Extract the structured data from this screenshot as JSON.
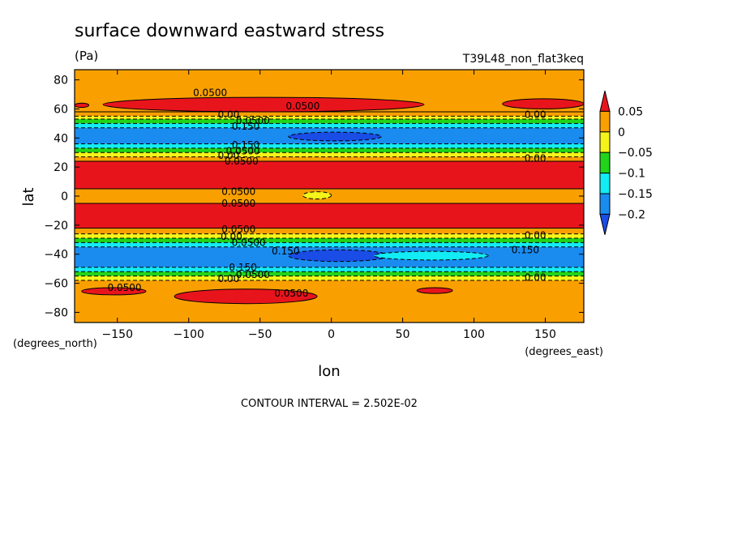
{
  "chart_data": {
    "type": "heatmap",
    "title": "surface downward eastward stress",
    "subtitle": "(Pa)",
    "run_label": "T39L48_non_flat3keq",
    "xlabel": "lon",
    "ylabel": "lat",
    "x_unit_label": "(degrees_east)",
    "y_unit_label": "(degrees_north)",
    "footer": "CONTOUR INTERVAL = 2.502E-02",
    "xlim": [
      -180,
      177
    ],
    "ylim": [
      -87,
      87
    ],
    "x_ticks": [
      -150,
      -100,
      -50,
      0,
      50,
      100,
      150
    ],
    "y_ticks": [
      -80,
      -60,
      -40,
      -20,
      0,
      20,
      40,
      60,
      80
    ],
    "x_tick_labels": [
      "−150",
      "−100",
      "−50",
      "0",
      "50",
      "100",
      "150"
    ],
    "y_tick_labels": [
      "−80",
      "−60",
      "−40",
      "−20",
      "0",
      "20",
      "40",
      "60",
      "80"
    ],
    "colorbar": {
      "levels": [
        0.05,
        0,
        -0.05,
        -0.1,
        -0.15,
        -0.2
      ],
      "level_labels": [
        "0.05",
        "0",
        "−0.05",
        "−0.1",
        "−0.15",
        "−0.2"
      ],
      "colors": [
        "#e8141c",
        "#f9a000",
        "#f4f41a",
        "#22d41a",
        "#12ecf4",
        "#1a8cf0",
        "#1a4ce6"
      ]
    },
    "bands": [
      {
        "lat_from": 87,
        "lat_to": 58,
        "value": 0.03
      },
      {
        "lat_from": 58,
        "lat_to": 55,
        "value": 0.01
      },
      {
        "lat_from": 55,
        "lat_to": 53,
        "value": -0.02
      },
      {
        "lat_from": 53,
        "lat_to": 50,
        "value": -0.07
      },
      {
        "lat_from": 50,
        "lat_to": 47,
        "value": -0.12
      },
      {
        "lat_from": 47,
        "lat_to": 36,
        "value": -0.17
      },
      {
        "lat_from": 36,
        "lat_to": 33,
        "value": -0.12
      },
      {
        "lat_from": 33,
        "lat_to": 30,
        "value": -0.07
      },
      {
        "lat_from": 30,
        "lat_to": 27,
        "value": -0.02
      },
      {
        "lat_from": 27,
        "lat_to": 24,
        "value": 0.03
      },
      {
        "lat_from": 24,
        "lat_to": 5,
        "value": 0.06
      },
      {
        "lat_from": 5,
        "lat_to": -5,
        "value": 0.03
      },
      {
        "lat_from": -5,
        "lat_to": -22,
        "value": 0.06
      },
      {
        "lat_from": -22,
        "lat_to": -26,
        "value": 0.03
      },
      {
        "lat_from": -26,
        "lat_to": -29,
        "value": -0.02
      },
      {
        "lat_from": -29,
        "lat_to": -32,
        "value": -0.07
      },
      {
        "lat_from": -32,
        "lat_to": -35,
        "value": -0.12
      },
      {
        "lat_from": -35,
        "lat_to": -49,
        "value": -0.17
      },
      {
        "lat_from": -49,
        "lat_to": -52,
        "value": -0.12
      },
      {
        "lat_from": -52,
        "lat_to": -55,
        "value": -0.07
      },
      {
        "lat_from": -55,
        "lat_to": -58,
        "value": -0.02
      },
      {
        "lat_from": -58,
        "lat_to": -87,
        "value": 0.03
      }
    ],
    "patches": [
      {
        "lon_from": -160,
        "lon_to": 65,
        "lat_from": 68,
        "lat_to": 58,
        "value": 0.06
      },
      {
        "lon_from": 120,
        "lon_to": 177,
        "lat_from": 67,
        "lat_to": 60,
        "value": 0.06
      },
      {
        "lon_from": -180,
        "lon_to": -170,
        "lat_from": 64,
        "lat_to": 61,
        "value": 0.06
      },
      {
        "lon_from": -30,
        "lon_to": 35,
        "lat_from": 44,
        "lat_to": 38,
        "value": -0.22
      },
      {
        "lon_from": -20,
        "lon_to": 0,
        "lat_from": 3,
        "lat_to": -2,
        "value": -0.02
      },
      {
        "lon_from": -30,
        "lon_to": 40,
        "lat_from": -37,
        "lat_to": -45,
        "value": -0.22
      },
      {
        "lon_from": 30,
        "lon_to": 110,
        "lat_from": -38,
        "lat_to": -44,
        "value": -0.14
      },
      {
        "lon_from": -175,
        "lon_to": -130,
        "lat_from": -63,
        "lat_to": -68,
        "value": 0.06
      },
      {
        "lon_from": -110,
        "lon_to": -10,
        "lat_from": -64,
        "lat_to": -74,
        "value": 0.06
      },
      {
        "lon_from": 60,
        "lon_to": 85,
        "lat_from": -63,
        "lat_to": -67,
        "value": 0.06
      }
    ],
    "contour_labels": [
      {
        "text": "0.0500",
        "lon": -85,
        "lat": 71
      },
      {
        "text": "0.0500",
        "lon": -20,
        "lat": 62
      },
      {
        "text": "0.00",
        "lon": -72,
        "lat": 56
      },
      {
        "text": "0.0500",
        "lon": -55,
        "lat": 52
      },
      {
        "text": "0.150",
        "lon": -60,
        "lat": 48
      },
      {
        "text": "0.00",
        "lon": 143,
        "lat": 56
      },
      {
        "text": "0.150",
        "lon": -60,
        "lat": 35
      },
      {
        "text": "0.0500",
        "lon": -62,
        "lat": 31
      },
      {
        "text": "0.00",
        "lon": -72,
        "lat": 28
      },
      {
        "text": "0.0500",
        "lon": -63,
        "lat": 24
      },
      {
        "text": "0.00",
        "lon": 143,
        "lat": 26
      },
      {
        "text": "0.0500",
        "lon": -65,
        "lat": 3
      },
      {
        "text": "0.0500",
        "lon": -65,
        "lat": -5
      },
      {
        "text": "0.0500",
        "lon": -65,
        "lat": -23
      },
      {
        "text": "0.00",
        "lon": -70,
        "lat": -28
      },
      {
        "text": "0.0500",
        "lon": -58,
        "lat": -32
      },
      {
        "text": "0.150",
        "lon": -32,
        "lat": -38
      },
      {
        "text": "0.150",
        "lon": 136,
        "lat": -37
      },
      {
        "text": "0.00",
        "lon": 143,
        "lat": -27
      },
      {
        "text": "0.150",
        "lon": -62,
        "lat": -49
      },
      {
        "text": "0.0500",
        "lon": -55,
        "lat": -54
      },
      {
        "text": "0.00",
        "lon": -72,
        "lat": -57
      },
      {
        "text": "0.00",
        "lon": 143,
        "lat": -56
      },
      {
        "text": "0.0500",
        "lon": -145,
        "lat": -63
      },
      {
        "text": "0.0500",
        "lon": -28,
        "lat": -67
      }
    ]
  }
}
